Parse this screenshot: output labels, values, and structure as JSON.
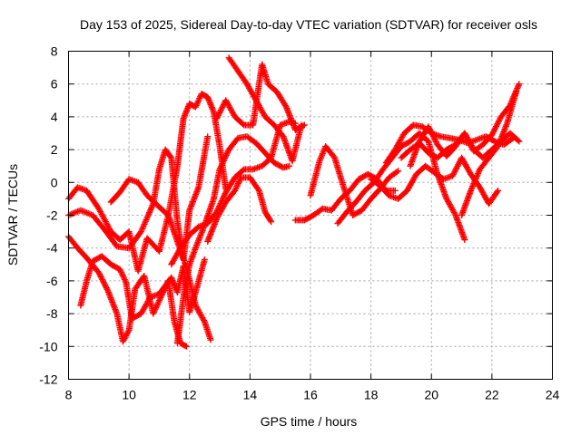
{
  "chart_data": {
    "type": "scatter",
    "title": "Day 153 of 2025, Sidereal Day-to-day VTEC variation (SDTVAR) for receiver osls",
    "xlabel": "GPS time / hours",
    "ylabel": "SDTVAR / TECUs",
    "xlim": [
      8,
      24
    ],
    "ylim": [
      -12,
      8
    ],
    "xticks": [
      8,
      10,
      12,
      14,
      16,
      18,
      20,
      22,
      24
    ],
    "yticks": [
      -12,
      -10,
      -8,
      -6,
      -4,
      -2,
      0,
      2,
      4,
      6,
      8
    ],
    "grid": true,
    "marker": "plus",
    "color": "#ff0000",
    "series": [
      {
        "x": [
          8.0,
          8.3,
          8.6,
          9.0,
          9.4,
          9.7,
          10.0,
          10.3,
          10.6,
          11.0,
          11.3,
          11.6,
          11.9,
          12.2,
          12.5,
          12.7
        ],
        "y": [
          -1.0,
          -0.3,
          -0.5,
          -1.6,
          -3.0,
          -3.5,
          -3.0,
          -5.4,
          -3.4,
          -4.2,
          -2.0,
          -3.6,
          -5.2,
          -7.5,
          -8.5,
          -9.6
        ]
      },
      {
        "x": [
          8.0,
          8.3,
          8.6,
          9.0,
          9.3,
          9.6,
          9.8,
          10.0,
          10.2,
          10.5,
          10.8,
          11.0,
          11.3,
          11.5,
          11.7,
          11.9
        ],
        "y": [
          -3.3,
          -4.0,
          -4.6,
          -5.5,
          -6.6,
          -8.0,
          -9.7,
          -9.0,
          -6.5,
          -5.7,
          -8.0,
          -7.2,
          -6.0,
          -8.5,
          -9.8,
          -10.0
        ]
      },
      {
        "x": [
          8.4,
          8.6,
          8.8,
          9.1,
          9.4,
          9.7,
          9.9,
          10.1,
          10.4,
          10.7,
          11.0,
          11.2,
          11.4,
          11.6,
          11.8,
          12.0,
          12.2,
          12.5
        ],
        "y": [
          -7.5,
          -6.0,
          -4.8,
          -4.5,
          -5.0,
          -5.3,
          -6.1,
          -8.3,
          -8.0,
          -7.0,
          -6.8,
          -6.3,
          -5.8,
          -6.7,
          -5.1,
          -7.9,
          -6.7,
          -4.7
        ]
      },
      {
        "x": [
          8.0,
          8.4,
          8.8,
          9.2,
          9.6,
          10.0,
          10.4,
          10.8,
          11.0,
          11.2,
          11.4,
          11.6,
          11.8,
          12.0,
          12.3,
          12.6
        ],
        "y": [
          -2.0,
          -1.7,
          -2.0,
          -2.9,
          -3.9,
          -4.0,
          -3.0,
          -1.3,
          0.8,
          2.0,
          1.5,
          -2.4,
          -4.7,
          -1.7,
          -0.3,
          2.8
        ]
      },
      {
        "x": [
          9.4,
          9.7,
          10.0,
          10.3,
          10.6,
          11.0,
          11.3,
          11.6,
          11.8,
          12.0,
          12.2,
          12.4,
          12.6,
          12.8,
          13.0,
          13.2
        ],
        "y": [
          -1.2,
          -0.6,
          0.2,
          0.0,
          -0.8,
          -1.5,
          -2.0,
          1.0,
          3.9,
          4.8,
          4.6,
          5.4,
          5.2,
          4.3,
          2.2,
          -0.4
        ]
      },
      {
        "x": [
          11.6,
          11.8,
          12.0,
          12.2,
          12.5,
          12.8,
          13.0,
          13.3,
          13.6,
          13.9,
          14.2,
          14.5,
          14.8,
          15.1,
          15.3
        ],
        "y": [
          -9.8,
          -7.0,
          -5.0,
          -4.0,
          -2.6,
          -1.0,
          0.8,
          2.0,
          2.7,
          2.8,
          2.4,
          1.8,
          1.2,
          0.9,
          1.0
        ]
      },
      {
        "x": [
          11.4,
          11.7,
          12.0,
          12.3,
          12.6,
          12.9,
          13.2,
          13.5,
          13.8,
          14.1,
          14.4,
          14.7,
          15.0,
          15.3,
          15.5
        ],
        "y": [
          -5.0,
          -4.0,
          -3.2,
          -2.7,
          -2.5,
          -1.8,
          -0.6,
          0.3,
          0.8,
          0.8,
          1.0,
          1.5,
          3.5,
          3.7,
          3.6
        ]
      },
      {
        "x": [
          12.6,
          12.9,
          13.2,
          13.5,
          13.7,
          14.0,
          14.3,
          14.5,
          14.7
        ],
        "y": [
          -3.6,
          -2.2,
          -1.2,
          -0.5,
          0.3,
          0.3,
          -0.5,
          -1.8,
          -2.4
        ]
      },
      {
        "x": [
          13.3,
          13.6,
          13.9,
          14.2,
          14.5,
          14.8,
          15.1,
          15.4,
          15.7
        ],
        "y": [
          7.6,
          6.8,
          6.0,
          5.0,
          4.0,
          3.5,
          2.8,
          1.3,
          3.5
        ]
      },
      {
        "x": [
          12.9,
          13.2,
          13.5,
          13.8,
          14.1,
          14.4,
          14.6,
          14.9,
          15.2,
          15.5,
          15.8
        ],
        "y": [
          3.9,
          5.0,
          4.0,
          3.5,
          3.5,
          7.2,
          6.0,
          5.5,
          4.6,
          3.2,
          3.5
        ]
      },
      {
        "x": [
          15.5,
          15.8,
          16.1,
          16.4,
          16.7,
          17.0,
          17.3,
          17.6,
          17.9,
          18.2,
          18.5,
          18.8
        ],
        "y": [
          -2.3,
          -2.3,
          -2.0,
          -1.6,
          -1.7,
          -1.0,
          -0.5,
          0.2,
          0.5,
          0.2,
          -0.5,
          -0.5
        ]
      },
      {
        "x": [
          16.0,
          16.3,
          16.5,
          16.8,
          17.1,
          17.4,
          17.7,
          18.0,
          18.3,
          18.6,
          18.9
        ],
        "y": [
          -0.8,
          1.3,
          2.2,
          1.5,
          -0.3,
          -2.0,
          -1.7,
          -1.0,
          -0.4,
          0.3,
          0.7
        ]
      },
      {
        "x": [
          16.9,
          17.2,
          17.5,
          17.8,
          18.1,
          18.4,
          18.7,
          19.0,
          19.3,
          19.6,
          19.9,
          20.2,
          20.5,
          20.8,
          21.1
        ],
        "y": [
          -2.5,
          -1.8,
          -1.2,
          -0.5,
          0.0,
          0.8,
          1.5,
          2.2,
          2.5,
          3.0,
          2.5,
          0.5,
          -1.0,
          -2.0,
          -3.5
        ]
      },
      {
        "x": [
          18.0,
          18.3,
          18.6,
          18.9,
          19.2,
          19.5,
          19.8,
          20.1,
          20.4,
          20.7,
          21.0,
          21.3,
          21.6,
          21.9,
          22.2
        ],
        "y": [
          0.2,
          -0.2,
          -0.8,
          -1.0,
          -0.5,
          0.5,
          1.0,
          0.6,
          0.2,
          0.4,
          1.5,
          0.5,
          -0.3,
          -1.3,
          -0.5
        ]
      },
      {
        "x": [
          18.5,
          18.8,
          19.1,
          19.4,
          19.7,
          20.0,
          20.3,
          20.6,
          20.9,
          21.2,
          21.5,
          21.8,
          22.1,
          22.4,
          22.7
        ],
        "y": [
          1.2,
          2.0,
          3.0,
          3.5,
          3.4,
          3.0,
          2.8,
          2.7,
          2.6,
          2.4,
          2.6,
          2.8,
          2.5,
          2.3,
          2.7
        ]
      },
      {
        "x": [
          19.0,
          19.3,
          19.6,
          19.9,
          20.2,
          20.5,
          20.8,
          21.1,
          21.4,
          21.7,
          22.0,
          22.3,
          22.6,
          22.9
        ],
        "y": [
          1.5,
          2.0,
          2.4,
          1.8,
          1.5,
          2.0,
          2.3,
          3.0,
          1.9,
          2.3,
          2.9,
          4.0,
          4.7,
          6.0
        ]
      },
      {
        "x": [
          19.3,
          19.6,
          19.9,
          20.2,
          20.5,
          20.8,
          21.1,
          21.4,
          21.7,
          22.0,
          22.3,
          22.6,
          22.9
        ],
        "y": [
          1.0,
          2.5,
          3.4,
          2.3,
          1.6,
          2.2,
          3.0,
          2.0,
          1.5,
          2.0,
          2.5,
          3.0,
          2.5
        ]
      },
      {
        "x": [
          21.0,
          21.3,
          21.6,
          21.9,
          22.2,
          22.5,
          22.8
        ],
        "y": [
          -2.0,
          -0.5,
          0.8,
          1.5,
          2.2,
          3.6,
          5.5
        ]
      }
    ]
  }
}
